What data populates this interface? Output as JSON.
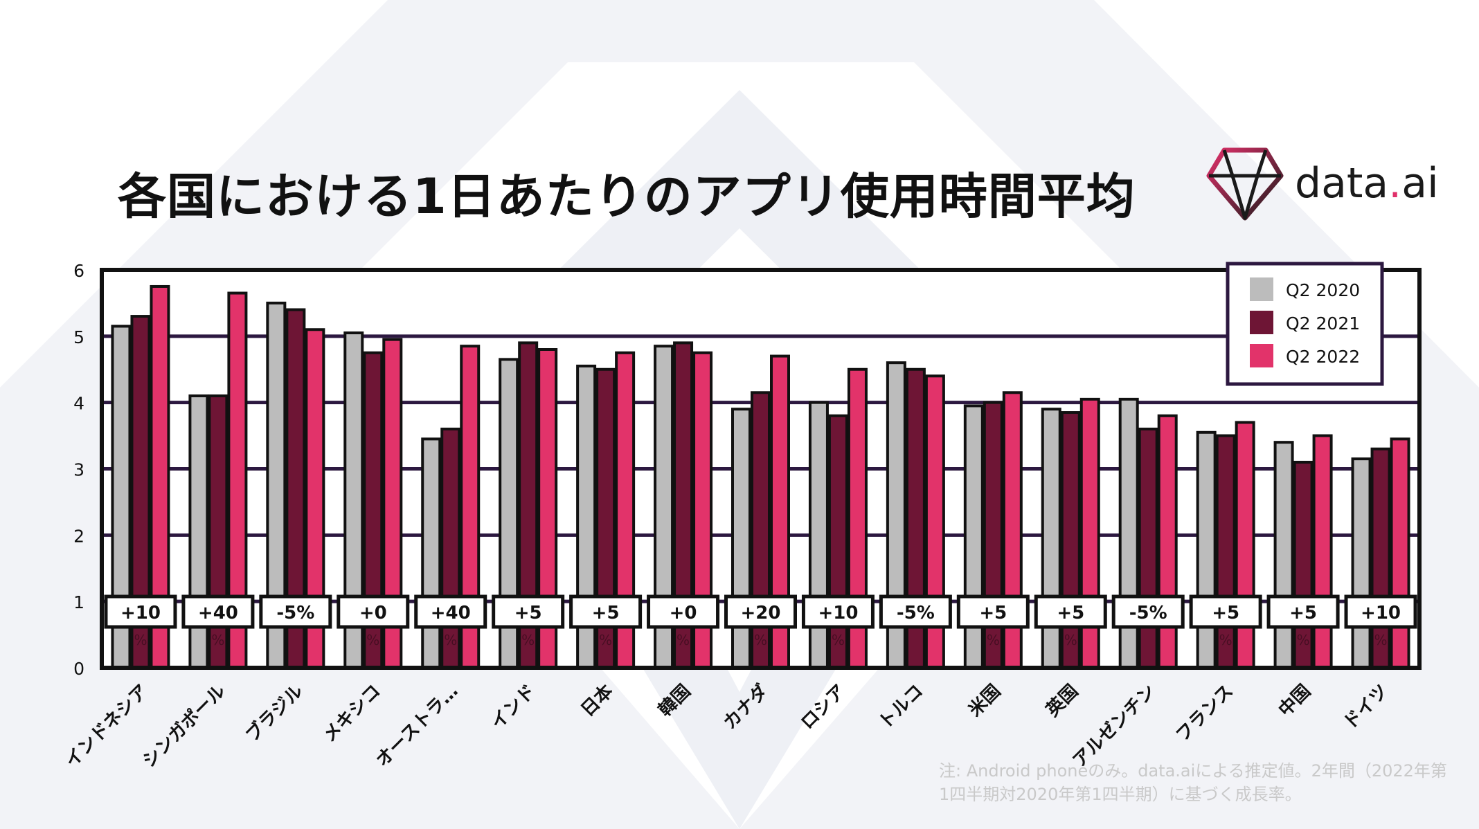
{
  "title": "各国における1日あたりのアプリ使用時間平均",
  "logo": {
    "text_main": "data",
    "text_dot": ".",
    "text_ai": "ai"
  },
  "note": "注: Android phoneのみ。data.aiによる推定値。2年間（2022年第1四半期対2020年第1四半期）に基づく成長率。",
  "colors": {
    "q2_2020": "#bcbcbc",
    "q2_2021": "#6e1535",
    "q2_2022": "#e2336a",
    "frame": "#111111",
    "gridline": "#2c1840"
  },
  "chart_data": {
    "type": "bar",
    "ylim": [
      0,
      6
    ],
    "yticks": [
      "0",
      "1",
      "2",
      "3",
      "4",
      "5",
      "6"
    ],
    "grid": true,
    "legend_position": "top-right",
    "categories": [
      "インドネシア",
      "シンガポール",
      "ブラジル",
      "メキシコ",
      "オーストラ…",
      "インド",
      "日本",
      "韓国",
      "カナダ",
      "ロシア",
      "トルコ",
      "米国",
      "英国",
      "アルゼンチン",
      "フランス",
      "中国",
      "ドイツ"
    ],
    "series": [
      {
        "name": "Q2 2020",
        "values": [
          5.15,
          4.1,
          5.5,
          5.05,
          3.45,
          4.65,
          4.55,
          4.85,
          3.9,
          4.0,
          4.6,
          3.95,
          3.9,
          4.05,
          3.55,
          3.4,
          3.15
        ]
      },
      {
        "name": "Q2 2021",
        "values": [
          5.3,
          4.1,
          5.4,
          4.75,
          3.6,
          4.9,
          4.5,
          4.9,
          4.15,
          3.8,
          4.5,
          4.0,
          3.85,
          3.6,
          3.5,
          3.1,
          3.3
        ]
      },
      {
        "name": "Q2 2022",
        "values": [
          5.75,
          5.65,
          5.1,
          4.95,
          4.85,
          4.8,
          4.75,
          4.75,
          4.7,
          4.5,
          4.4,
          4.15,
          4.05,
          3.8,
          3.7,
          3.5,
          3.45
        ]
      }
    ],
    "growth_labels": [
      "+10",
      "+40",
      "-5%",
      "+0",
      "+40",
      "+5",
      "+5",
      "+0",
      "+20",
      "+10",
      "-5%",
      "+5",
      "+5",
      "-5%",
      "+5",
      "+5",
      "+10"
    ],
    "growth_suffix": "%"
  }
}
